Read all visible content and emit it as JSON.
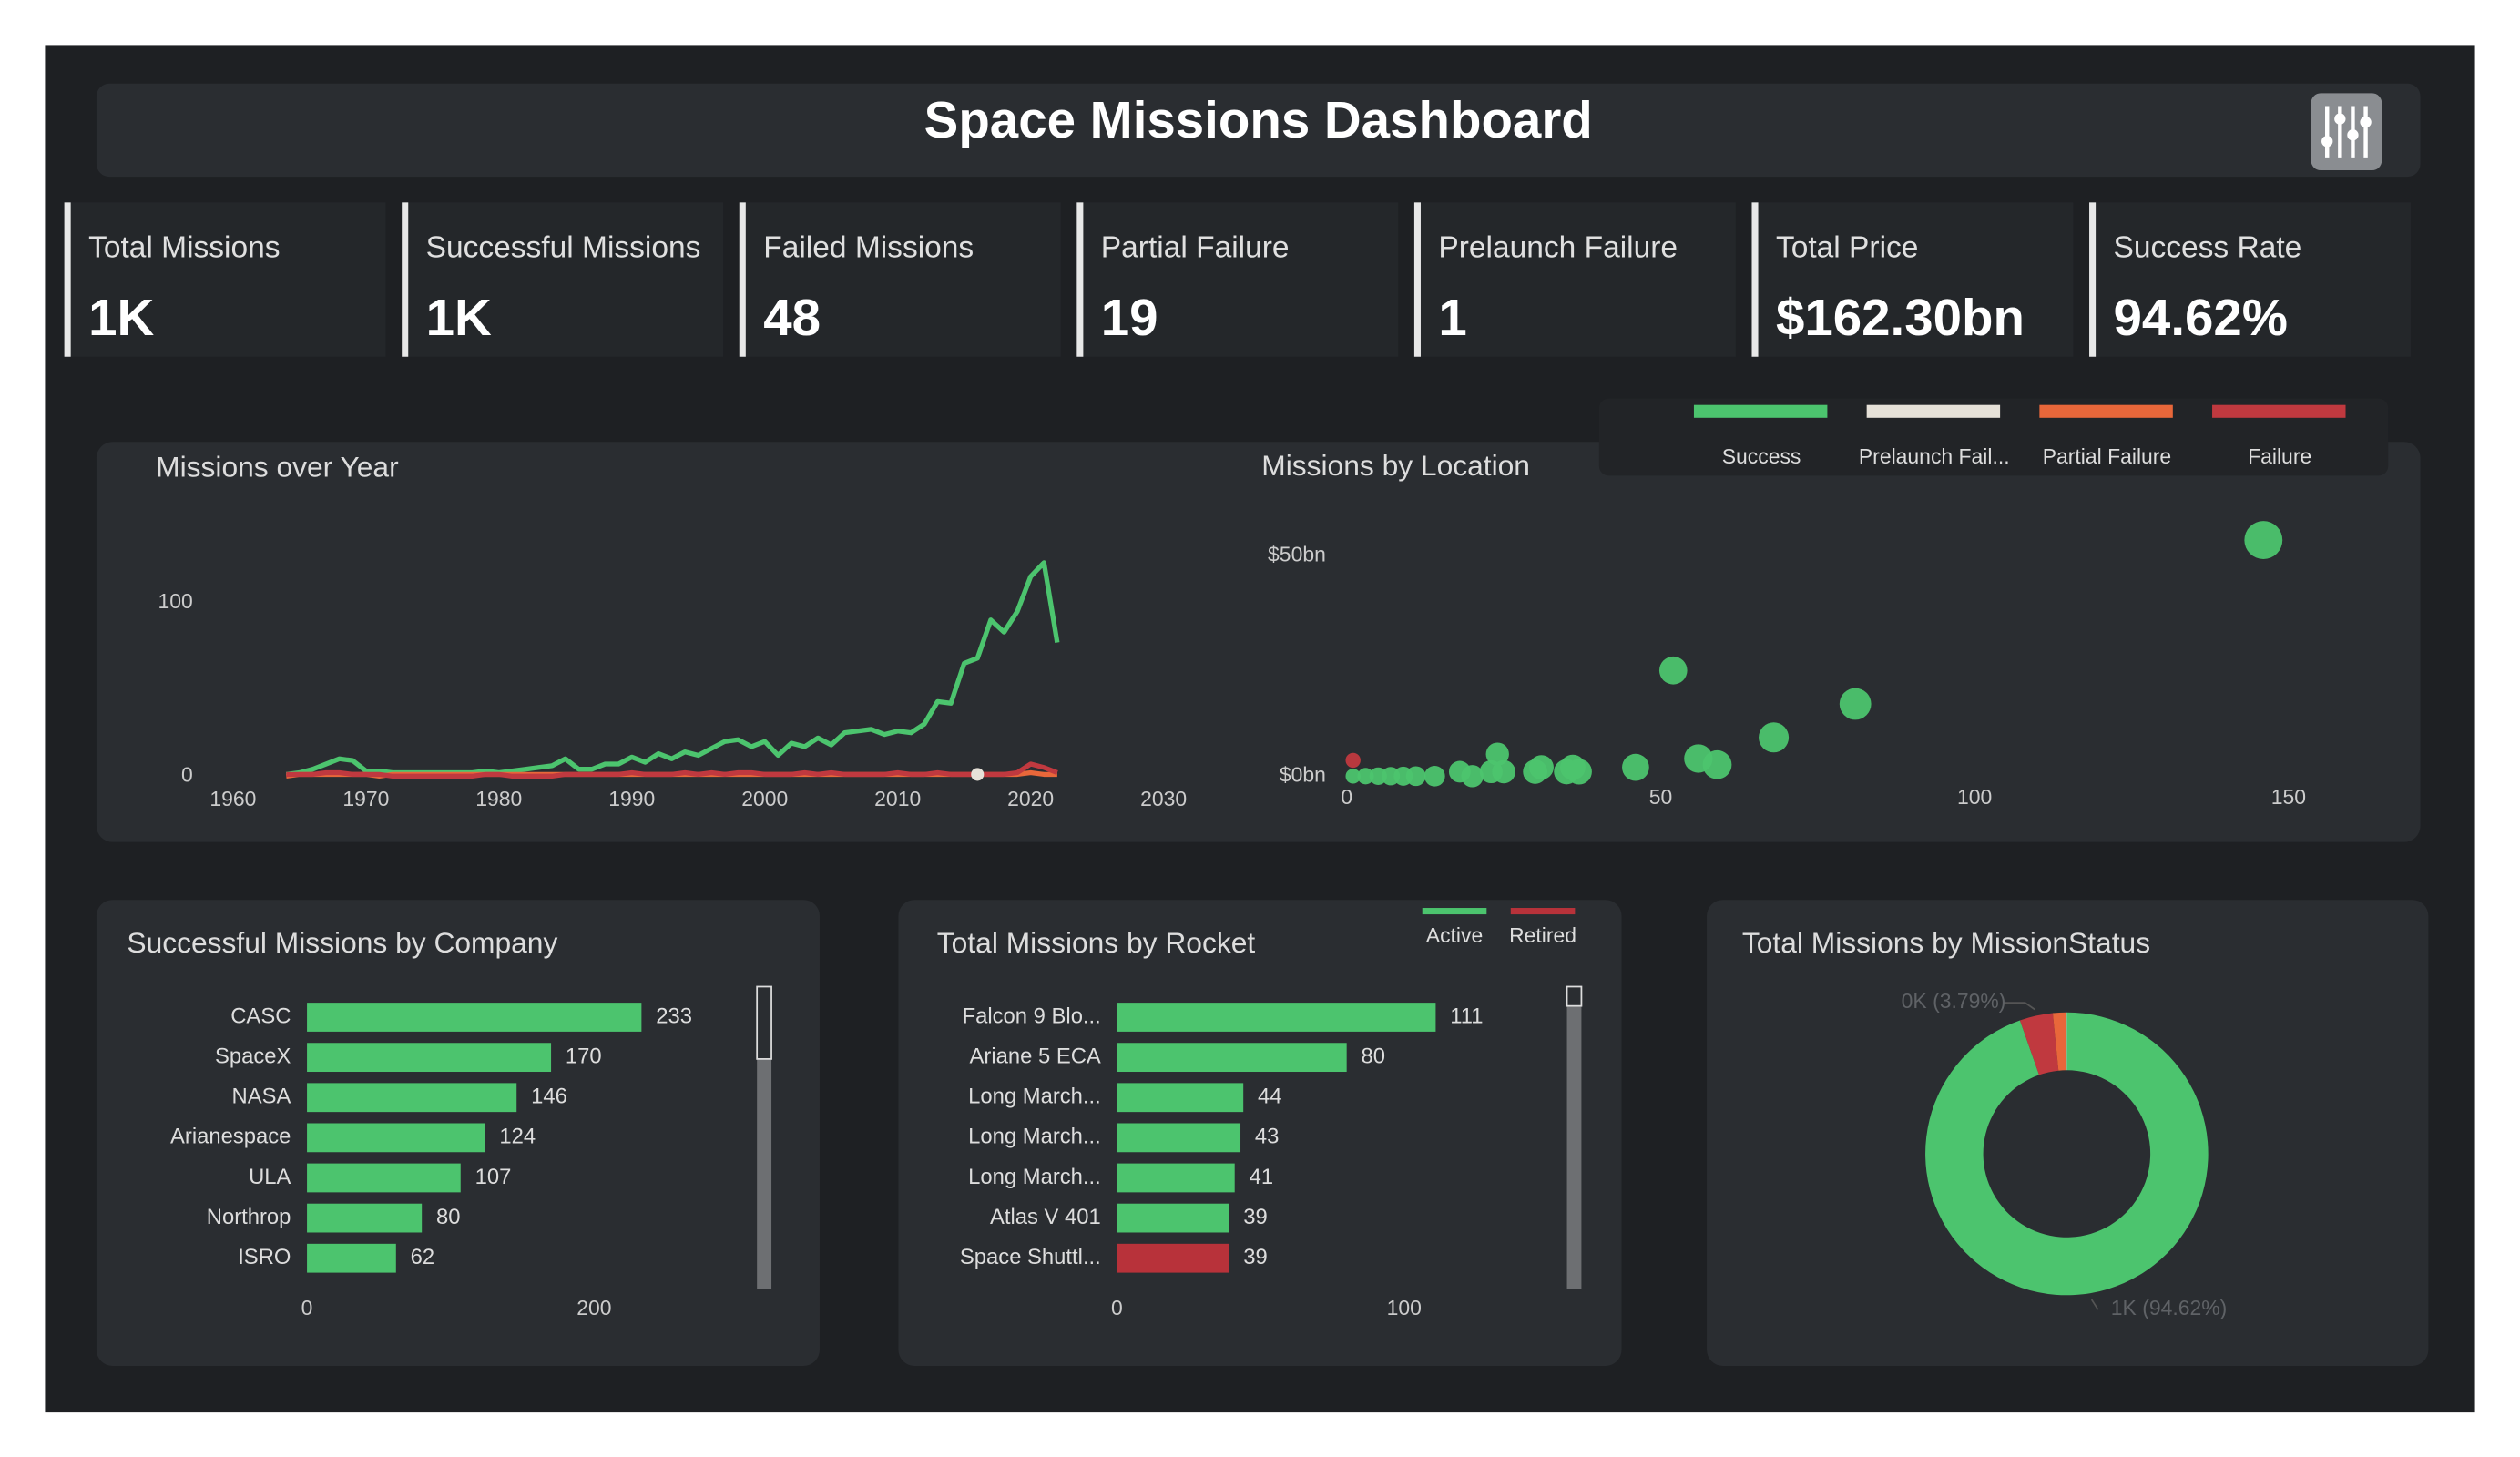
{
  "header": {
    "title": "Space Missions Dashboard"
  },
  "kpis": [
    {
      "label": "Total Missions",
      "value": "1K"
    },
    {
      "label": "Successful Missions",
      "value": "1K"
    },
    {
      "label": "Failed Missions",
      "value": "48"
    },
    {
      "label": "Partial Failure",
      "value": "19"
    },
    {
      "label": "Prelaunch Failure",
      "value": "1"
    },
    {
      "label": "Total Price",
      "value": "$162.30bn"
    },
    {
      "label": "Success Rate",
      "value": "94.62%"
    }
  ],
  "chart_data": [
    {
      "type": "line",
      "title": "Missions over Year",
      "x": [
        1964,
        1965,
        1966,
        1967,
        1968,
        1969,
        1970,
        1971,
        1972,
        1973,
        1974,
        1975,
        1976,
        1977,
        1978,
        1979,
        1980,
        1981,
        1982,
        1983,
        1984,
        1985,
        1986,
        1987,
        1988,
        1989,
        1990,
        1991,
        1992,
        1993,
        1994,
        1995,
        1996,
        1997,
        1998,
        1999,
        2000,
        2001,
        2002,
        2003,
        2004,
        2005,
        2006,
        2007,
        2008,
        2009,
        2010,
        2011,
        2012,
        2013,
        2014,
        2015,
        2016,
        2017,
        2018,
        2019,
        2020,
        2021,
        2022
      ],
      "series": [
        {
          "color": "#4cc46e",
          "values": [
            1,
            2,
            4,
            7,
            10,
            9,
            3,
            3,
            2,
            2,
            2,
            2,
            2,
            2,
            2,
            3,
            2,
            3,
            4,
            5,
            6,
            10,
            4,
            4,
            7,
            7,
            11,
            8,
            13,
            10,
            14,
            12,
            16,
            20,
            21,
            17,
            20,
            12,
            19,
            17,
            22,
            18,
            25,
            26,
            27,
            24,
            26,
            25,
            30,
            43,
            42,
            65,
            68,
            90,
            83,
            95,
            115,
            123,
            77
          ]
        },
        {
          "color": "#e8673a",
          "values": [
            0,
            1,
            1,
            1,
            1,
            1,
            1,
            0,
            1,
            1,
            1,
            1,
            1,
            1,
            1,
            1,
            1,
            1,
            1,
            1,
            1,
            1,
            1,
            1,
            1,
            1,
            1,
            1,
            1,
            1,
            1,
            1,
            1,
            1,
            1,
            1,
            1,
            1,
            1,
            1,
            1,
            1,
            1,
            1,
            1,
            1,
            1,
            1,
            1,
            1,
            1,
            1,
            1,
            1,
            1,
            1,
            2,
            1,
            1
          ]
        },
        {
          "color": "#c0393f",
          "values": [
            1,
            1,
            1,
            2,
            2,
            1,
            1,
            1,
            0,
            0,
            0,
            0,
            0,
            0,
            0,
            1,
            1,
            0,
            0,
            0,
            0,
            1,
            1,
            1,
            1,
            1,
            2,
            1,
            1,
            1,
            2,
            1,
            2,
            1,
            2,
            2,
            1,
            1,
            1,
            2,
            1,
            2,
            1,
            1,
            1,
            1,
            2,
            1,
            1,
            2,
            1,
            1,
            1,
            1,
            1,
            2,
            7,
            5,
            2
          ]
        },
        {
          "color": "#e6e1d8",
          "values": [
            null,
            null,
            null,
            null,
            null,
            null,
            null,
            null,
            null,
            null,
            null,
            null,
            null,
            null,
            null,
            null,
            null,
            null,
            null,
            null,
            null,
            null,
            null,
            null,
            null,
            null,
            null,
            null,
            null,
            null,
            null,
            null,
            null,
            null,
            null,
            null,
            null,
            null,
            null,
            null,
            null,
            null,
            null,
            null,
            null,
            null,
            null,
            null,
            null,
            null,
            null,
            null,
            1,
            null,
            null,
            null,
            null,
            null,
            null
          ]
        }
      ],
      "xlim": [
        1960,
        2030
      ],
      "xticks": [
        1960,
        1970,
        1980,
        1990,
        2000,
        2010,
        2020,
        2030
      ],
      "ylim": [
        0,
        125
      ],
      "yticks": [
        0,
        100
      ]
    },
    {
      "type": "scatter",
      "title": "Missions by Location",
      "series": [
        {
          "name": "Success",
          "color": "#4cc46e",
          "x": [
            1,
            3,
            5,
            7,
            9,
            11,
            14,
            18,
            20,
            23,
            24,
            25,
            30,
            31,
            35,
            36,
            37,
            46,
            52,
            56,
            59,
            68,
            81,
            146
          ],
          "values": [
            0,
            0,
            0,
            0,
            0,
            0,
            0,
            1,
            0,
            1,
            5,
            1,
            1,
            2,
            1,
            2,
            1,
            2,
            24,
            4,
            2.6,
            8.8,
            16.4,
            53.6
          ]
        },
        {
          "name": "Prelaunch Fail...",
          "color": "#e6e1d8",
          "x": [],
          "values": []
        },
        {
          "name": "Partial Failure",
          "color": "#e8673a",
          "x": [],
          "values": []
        },
        {
          "name": "Failure",
          "color": "#c0393f",
          "x": [
            1
          ],
          "values": [
            3.6
          ]
        }
      ],
      "xlim": [
        0,
        150
      ],
      "xticks": [
        0,
        50,
        100,
        150
      ],
      "ylim": [
        0,
        54
      ],
      "yticks": [
        {
          "value": 0,
          "label": "$0bn"
        },
        {
          "value": 50,
          "label": "$50bn"
        }
      ]
    },
    {
      "type": "bar",
      "title": "Successful Missions by Company",
      "categories": [
        "CASC",
        "SpaceX",
        "NASA",
        "Arianespace",
        "ULA",
        "Northrop",
        "ISRO"
      ],
      "series": [
        {
          "color": "#4cc46e",
          "values": [
            233,
            170,
            146,
            124,
            107,
            80,
            62
          ]
        }
      ],
      "xlim": [
        0,
        300
      ],
      "xticks": [
        0,
        200
      ]
    },
    {
      "type": "bar",
      "title": "Total Missions by Rocket",
      "categories": [
        "Falcon 9 Blo...",
        "Ariane 5 ECA",
        "Long March...",
        "Long March...",
        "Long March...",
        "Atlas V 401",
        "Space Shuttl..."
      ],
      "series": [
        {
          "name": "Active",
          "color": "#4cc46e",
          "values": [
            111,
            80,
            44,
            43,
            41,
            39,
            null
          ]
        },
        {
          "name": "Retired",
          "color": "#b8323a",
          "values": [
            null,
            null,
            null,
            null,
            null,
            null,
            39
          ]
        }
      ],
      "xlim": [
        0,
        150
      ],
      "xticks": [
        0,
        100
      ]
    },
    {
      "type": "pie",
      "title": "Total Missions by MissionStatus",
      "values": [
        94.62,
        3.79,
        1.5,
        0.08
      ],
      "value_labels": [
        "1K (94.62%)",
        "0K (3.79%)",
        null,
        null
      ],
      "colors": [
        "#4cc46e",
        "#c0393f",
        "#e8673a",
        "#e6e1d8"
      ]
    }
  ]
}
